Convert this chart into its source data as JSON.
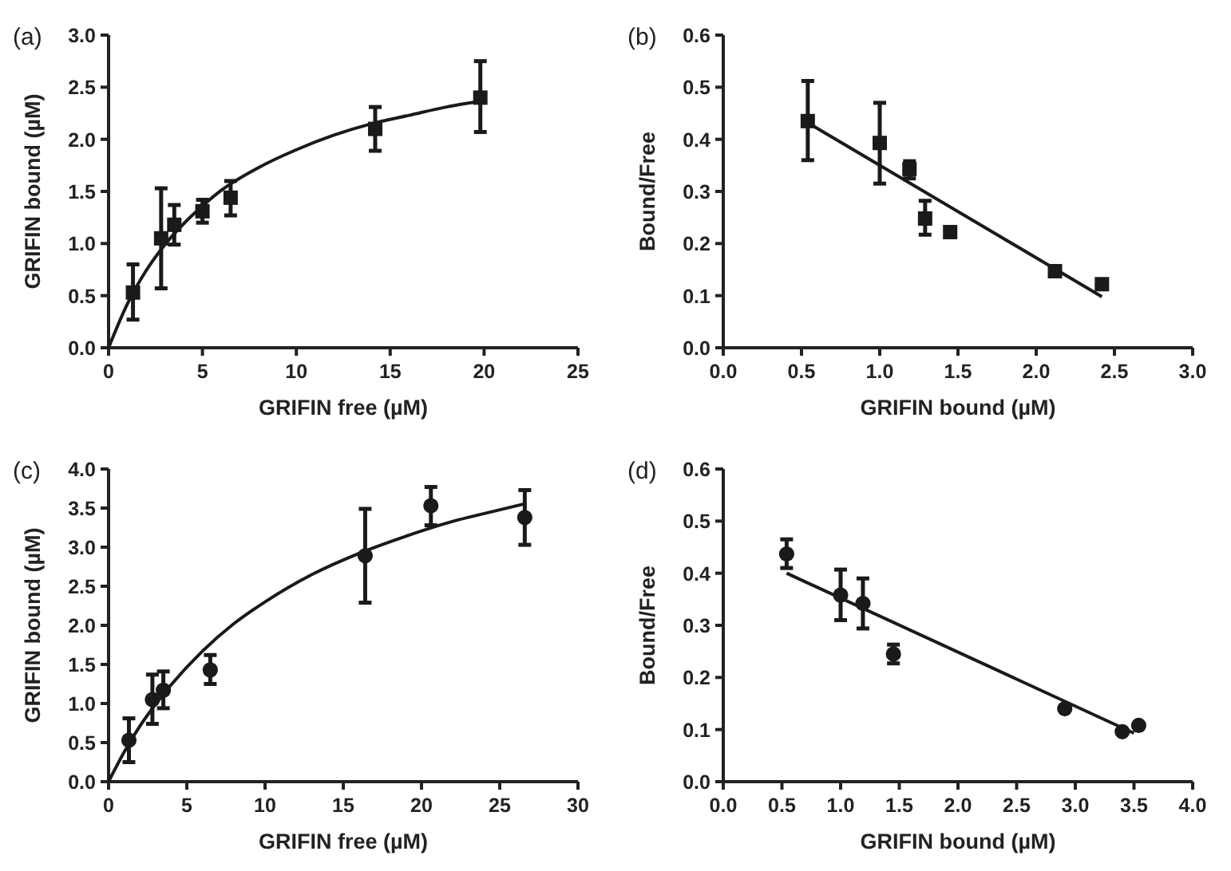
{
  "chart_data": [
    {
      "type": "scatter",
      "title": "(a)",
      "xlabel": "GRIFIN free (µM)",
      "ylabel": "GRIFIN bound (µM)",
      "xlim": [
        0,
        25
      ],
      "xticks": [
        0,
        5,
        10,
        15,
        20,
        25
      ],
      "ylim": [
        0,
        3
      ],
      "yticks": [
        {
          "value": 0,
          "label": "0.0"
        },
        {
          "value": 0.5,
          "label": "0.5"
        },
        {
          "value": 1,
          "label": "1.0"
        },
        {
          "value": 1.5,
          "label": "1.5"
        },
        {
          "value": 2,
          "label": "2.0"
        },
        {
          "value": 2.5,
          "label": "2.5"
        },
        {
          "value": 3,
          "label": "3.0"
        }
      ],
      "grid": false,
      "marker": "square",
      "series": [
        {
          "color": "#1a1a1a",
          "x": [
            1.3,
            2.8,
            3.5,
            5.0,
            6.5,
            14.2,
            19.8
          ],
          "values": [
            0.53,
            1.05,
            1.18,
            1.31,
            1.44,
            2.1,
            2.4
          ],
          "errors": [
            [
              0.27,
              0.8
            ],
            [
              0.57,
              1.53
            ],
            [
              0.99,
              1.37
            ],
            [
              1.2,
              1.42
            ],
            [
              1.27,
              1.6
            ],
            [
              1.89,
              2.31
            ],
            [
              2.07,
              2.75
            ]
          ]
        },
        {
          "type": "line",
          "color": "#1a1a1a",
          "marker": "none",
          "line_style": "solid",
          "x": [
            0,
            1,
            2,
            3,
            4,
            5,
            6,
            8,
            10,
            12,
            14,
            16,
            18,
            20
          ],
          "values": [
            0,
            0.42,
            0.74,
            0.99,
            1.19,
            1.36,
            1.51,
            1.73,
            1.9,
            2.04,
            2.15,
            2.23,
            2.31,
            2.37
          ]
        }
      ]
    },
    {
      "type": "scatter",
      "title": "(b)",
      "xlabel": "GRIFIN bound (µM)",
      "ylabel": "Bound/Free",
      "xlim": [
        0,
        3
      ],
      "xticks": [
        {
          "value": 0,
          "label": "0.0"
        },
        {
          "value": 0.5,
          "label": "0.5"
        },
        {
          "value": 1,
          "label": "1.0"
        },
        {
          "value": 1.5,
          "label": "1.5"
        },
        {
          "value": 2,
          "label": "2.0"
        },
        {
          "value": 2.5,
          "label": "2.5"
        },
        {
          "value": 3,
          "label": "3.0"
        }
      ],
      "ylim": [
        0,
        0.6
      ],
      "yticks": [
        {
          "value": 0,
          "label": "0.0"
        },
        0.1,
        0.2,
        0.3,
        0.4,
        0.5,
        0.6
      ],
      "grid": false,
      "marker": "square",
      "series": [
        {
          "color": "#1a1a1a",
          "x": [
            0.54,
            1.0,
            1.19,
            1.29,
            1.45,
            2.12,
            2.42
          ],
          "values": [
            0.435,
            0.393,
            0.343,
            0.248,
            0.222,
            0.147,
            0.122
          ],
          "errors": [
            [
              0.36,
              0.512
            ],
            [
              0.315,
              0.47
            ],
            [
              0.325,
              0.358
            ],
            [
              0.217,
              0.282
            ],
            null,
            null,
            null
          ]
        },
        {
          "type": "line",
          "color": "#1a1a1a",
          "marker": "none",
          "line_style": "solid",
          "x": [
            0.55,
            2.42
          ],
          "values": [
            0.43,
            0.098
          ]
        }
      ]
    },
    {
      "type": "scatter",
      "title": "(c)",
      "xlabel": "GRIFIN free (µM)",
      "ylabel": "GRIFIN bound (µM)",
      "xlim": [
        0,
        30
      ],
      "xticks": [
        0,
        5,
        10,
        15,
        20,
        25,
        30
      ],
      "ylim": [
        0,
        4
      ],
      "yticks": [
        {
          "value": 0,
          "label": "0.0"
        },
        {
          "value": 0.5,
          "label": "0.5"
        },
        {
          "value": 1,
          "label": "1.0"
        },
        {
          "value": 1.5,
          "label": "1.5"
        },
        {
          "value": 2,
          "label": "2.0"
        },
        {
          "value": 2.5,
          "label": "2.5"
        },
        {
          "value": 3,
          "label": "3.0"
        },
        {
          "value": 3.5,
          "label": "3.5"
        },
        {
          "value": 4,
          "label": "4.0"
        }
      ],
      "grid": false,
      "marker": "circle",
      "series": [
        {
          "color": "#1a1a1a",
          "x": [
            1.3,
            2.8,
            3.5,
            6.5,
            16.4,
            20.6,
            26.6
          ],
          "values": [
            0.53,
            1.05,
            1.17,
            1.43,
            2.89,
            3.53,
            3.38
          ],
          "errors": [
            [
              0.25,
              0.81
            ],
            [
              0.74,
              1.37
            ],
            [
              0.94,
              1.41
            ],
            [
              1.25,
              1.62
            ],
            [
              2.29,
              3.49
            ],
            [
              3.28,
              3.77
            ],
            [
              3.03,
              3.73
            ]
          ]
        },
        {
          "type": "line",
          "color": "#1a1a1a",
          "marker": "none",
          "line_style": "solid",
          "x": [
            0,
            1,
            2,
            3,
            4,
            6,
            8,
            10,
            13,
            16,
            19,
            22,
            24,
            26.5
          ],
          "values": [
            0,
            0.38,
            0.71,
            0.99,
            1.24,
            1.67,
            2.02,
            2.3,
            2.65,
            2.92,
            3.14,
            3.33,
            3.43,
            3.55
          ]
        }
      ]
    },
    {
      "type": "scatter",
      "title": "(d)",
      "xlabel": "GRIFIN bound (µM)",
      "ylabel": "Bound/Free",
      "xlim": [
        0,
        4
      ],
      "xticks": [
        {
          "value": 0,
          "label": "0.0"
        },
        {
          "value": 0.5,
          "label": "0.5"
        },
        {
          "value": 1,
          "label": "1.0"
        },
        {
          "value": 1.5,
          "label": "1.5"
        },
        {
          "value": 2,
          "label": "2.0"
        },
        {
          "value": 2.5,
          "label": "2.5"
        },
        {
          "value": 3,
          "label": "3.0"
        },
        {
          "value": 3.5,
          "label": "3.5"
        },
        {
          "value": 4,
          "label": "4.0"
        }
      ],
      "ylim": [
        0,
        0.6
      ],
      "yticks": [
        {
          "value": 0,
          "label": "0.0"
        },
        0.1,
        0.2,
        0.3,
        0.4,
        0.5,
        0.6
      ],
      "grid": false,
      "marker": "circle",
      "series": [
        {
          "color": "#1a1a1a",
          "x": [
            0.54,
            1.0,
            1.19,
            1.45,
            2.91,
            3.4,
            3.54
          ],
          "values": [
            0.437,
            0.358,
            0.342,
            0.245,
            0.14,
            0.096,
            0.108
          ],
          "errors": [
            [
              0.41,
              0.465
            ],
            [
              0.31,
              0.407
            ],
            [
              0.294,
              0.39
            ],
            [
              0.227,
              0.263
            ],
            null,
            null,
            null
          ]
        },
        {
          "type": "line",
          "color": "#1a1a1a",
          "marker": "none",
          "line_style": "solid",
          "x": [
            0.54,
            3.5
          ],
          "values": [
            0.4,
            0.093
          ]
        }
      ]
    }
  ]
}
